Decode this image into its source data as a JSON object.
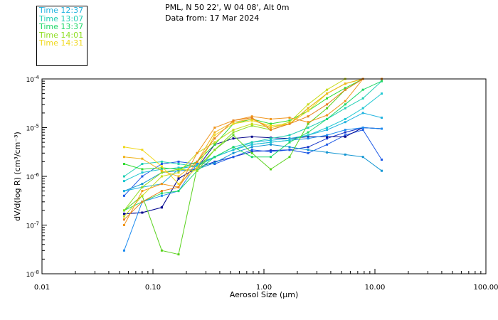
{
  "header": {
    "line1": "PML, N 50 22', W 04 08', Alt 0m",
    "line2": "Data from: 17 Mar 2024"
  },
  "chart_data": {
    "type": "line",
    "x_scale": "log",
    "y_scale": "log",
    "xlabel": "Aerosol Size (μm)",
    "ylabel": "dV/d(log R) (cm³/cm⁻³)",
    "xlim": [
      0.01,
      100
    ],
    "ylim": [
      1e-08,
      0.0001
    ],
    "x_ticks": [
      {
        "value": 0.01,
        "label": "0.01"
      },
      {
        "value": 0.1,
        "label": "0.10"
      },
      {
        "value": 1,
        "label": "1.00"
      },
      {
        "value": 10,
        "label": "10.00"
      },
      {
        "value": 100,
        "label": "100.00"
      }
    ],
    "y_ticks": [
      {
        "value": 1e-08,
        "exp": -8
      },
      {
        "value": 1e-07,
        "exp": -7
      },
      {
        "value": 1e-06,
        "exp": -6
      },
      {
        "value": 1e-05,
        "exp": -5
      },
      {
        "value": 0.0001,
        "exp": -4
      }
    ],
    "y_tick_base": "10",
    "x": [
      0.055,
      0.08,
      0.12,
      0.17,
      0.25,
      0.36,
      0.53,
      0.78,
      1.15,
      1.7,
      2.5,
      3.7,
      5.4,
      7.8,
      11.5
    ],
    "legend": [
      {
        "label": "Time 12:37",
        "color": "#22b4e0"
      },
      {
        "label": "Time 13:07",
        "color": "#22cfb4"
      },
      {
        "label": "Time 13:37",
        "color": "#22d86a"
      },
      {
        "label": "Time 14:01",
        "color": "#8ede22"
      },
      {
        "label": "Time 14:31",
        "color": "#f0d81e"
      }
    ],
    "series": [
      {
        "color": "#1432c8",
        "values": [
          1.7e-07,
          1.8e-07,
          2.3e-07,
          9e-07,
          1.5e-06,
          2e-06,
          2.5e-06,
          3.2e-06,
          3.4e-06,
          3.5e-06,
          4e-06,
          6e-06,
          8e-06,
          1e-05,
          9.5e-06
        ]
      },
      {
        "color": "#1e5ae6",
        "values": [
          4e-07,
          1e-06,
          1.8e-06,
          2e-06,
          1.8e-06,
          1.8e-06,
          2.5e-06,
          3.5e-06,
          3.2e-06,
          3.5e-06,
          3e-06,
          4.5e-06,
          7e-06,
          9e-06,
          2.2e-06
        ]
      },
      {
        "color": "#1496d2",
        "values": [
          5e-07,
          7e-07,
          1.2e-06,
          1.3e-06,
          1.4e-06,
          1.9e-06,
          3e-06,
          4e-06,
          4.5e-06,
          4e-06,
          3.5e-06,
          3.1e-06,
          2.8e-06,
          2.5e-06,
          1.3e-06
        ]
      },
      {
        "color": "#0a0a8c",
        "values": [
          1.7e-07,
          1.8e-07,
          2.3e-07,
          9e-07,
          1.5e-06,
          4.5e-06,
          6e-06,
          6.5e-06,
          6.2e-06,
          6e-06,
          6.5e-06,
          6.5e-06,
          6.5e-06,
          1e-05,
          9.5e-06
        ]
      },
      {
        "color": "#1e8cf0",
        "values": [
          3e-08,
          3e-07,
          4e-07,
          5e-07,
          1.8e-06,
          2.5e-06,
          3.5e-06,
          4.5e-06,
          5e-06,
          5.5e-06,
          6e-06,
          7e-06,
          9e-06,
          1e-05,
          9.5e-06
        ]
      },
      {
        "color": "#22b4e0",
        "values": [
          5e-07,
          6e-07,
          7e-07,
          1.4e-06,
          1.7e-06,
          2.5e-06,
          3.5e-06,
          5e-06,
          5.5e-06,
          6e-06,
          7e-06,
          9e-06,
          1.3e-05,
          2e-05,
          1.6e-05
        ]
      },
      {
        "color": "#20c8d2",
        "values": [
          8e-07,
          1.2e-06,
          1.4e-06,
          1.5e-06,
          1.6e-06,
          2.5e-06,
          3.5e-06,
          4.5e-06,
          5e-06,
          5.5e-06,
          7e-06,
          1e-05,
          1.5e-05,
          2.5e-05,
          5e-05
        ]
      },
      {
        "color": "#22cfb4",
        "values": [
          1e-06,
          1.8e-06,
          2e-06,
          1.8e-06,
          1.6e-06,
          2.5e-06,
          4e-06,
          5e-06,
          6e-06,
          7e-06,
          1e-05,
          1.5e-05,
          2.5e-05,
          4e-05,
          9e-05
        ]
      },
      {
        "color": "#22d86a",
        "values": [
          2e-07,
          3e-07,
          4.5e-07,
          5e-07,
          1.3e-06,
          2.5e-06,
          4e-06,
          2.5e-06,
          2.5e-06,
          5e-06,
          8e-06,
          1.5e-05,
          3e-05,
          6e-05,
          9e-05
        ]
      },
      {
        "color": "#5ad21e",
        "values": [
          2e-07,
          4e-07,
          3e-08,
          2.5e-08,
          1.5e-06,
          3.5e-06,
          7e-06,
          3e-06,
          1.4e-06,
          2.5e-06,
          1.2e-05,
          2.5e-05,
          6e-05,
          0.0001,
          0.0001
        ]
      },
      {
        "color": "#32dc32",
        "values": [
          1.8e-06,
          1.4e-06,
          1.5e-06,
          1.4e-06,
          2e-06,
          4.5e-06,
          1.2e-05,
          1.5e-05,
          1.2e-05,
          1.4e-05,
          2.2e-05,
          4e-05,
          6.5e-05,
          0.0001,
          0.0001
        ]
      },
      {
        "color": "#8ede22",
        "values": [
          2e-07,
          6e-07,
          1.2e-06,
          1.4e-06,
          1.3e-06,
          3.5e-06,
          8e-06,
          1.1e-05,
          9e-06,
          1.2e-05,
          2.5e-05,
          5e-05,
          8e-05,
          0.0001,
          0.0001
        ]
      },
      {
        "color": "#c8dc1e",
        "values": [
          1.5e-07,
          4e-07,
          1e-06,
          1.2e-06,
          3e-06,
          5e-06,
          9e-06,
          1.2e-05,
          1e-05,
          1.3e-05,
          3e-05,
          6e-05,
          0.0001,
          0.0001,
          0.0001
        ]
      },
      {
        "color": "#f0d81e",
        "values": [
          4e-06,
          3.5e-06,
          1.6e-06,
          7e-07,
          1.5e-06,
          7e-06,
          1.2e-05,
          1.4e-05,
          1.1e-05,
          1.2e-05,
          2.2e-05,
          5e-05,
          8e-05,
          0.0001,
          0.0001
        ]
      },
      {
        "color": "#f0b41e",
        "values": [
          2.5e-06,
          2.3e-06,
          1.3e-06,
          1e-06,
          2e-06,
          8e-06,
          1.3e-05,
          1.5e-05,
          1e-05,
          1.2e-05,
          2.5e-05,
          5e-05,
          8e-05,
          0.0001,
          0.0001
        ]
      },
      {
        "color": "#f0961e",
        "values": [
          1e-07,
          5e-07,
          7e-07,
          6e-07,
          3e-06,
          1e-05,
          1.4e-05,
          1.7e-05,
          1.5e-05,
          1.6e-05,
          1.3e-05,
          1.8e-05,
          3.5e-05,
          0.0001,
          0.0001
        ]
      },
      {
        "color": "#e6821e",
        "values": [
          1.3e-07,
          3e-07,
          5e-07,
          6e-07,
          2e-06,
          6e-06,
          1.4e-05,
          1.6e-05,
          9e-06,
          1.2e-05,
          1.7e-05,
          3e-05,
          6e-05,
          0.0001,
          0.0001
        ]
      }
    ]
  }
}
